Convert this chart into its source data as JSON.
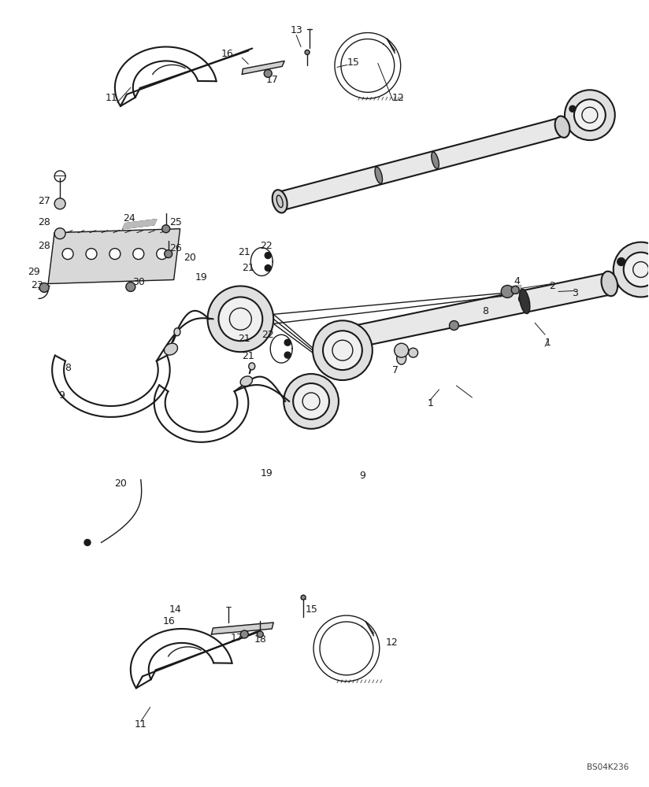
{
  "bg_color": "#ffffff",
  "line_color": "#1a1a1a",
  "label_color": "#1a1a1a",
  "watermark": "BS04K236",
  "fig_width": 8.24,
  "fig_height": 10.0,
  "dpi": 100
}
